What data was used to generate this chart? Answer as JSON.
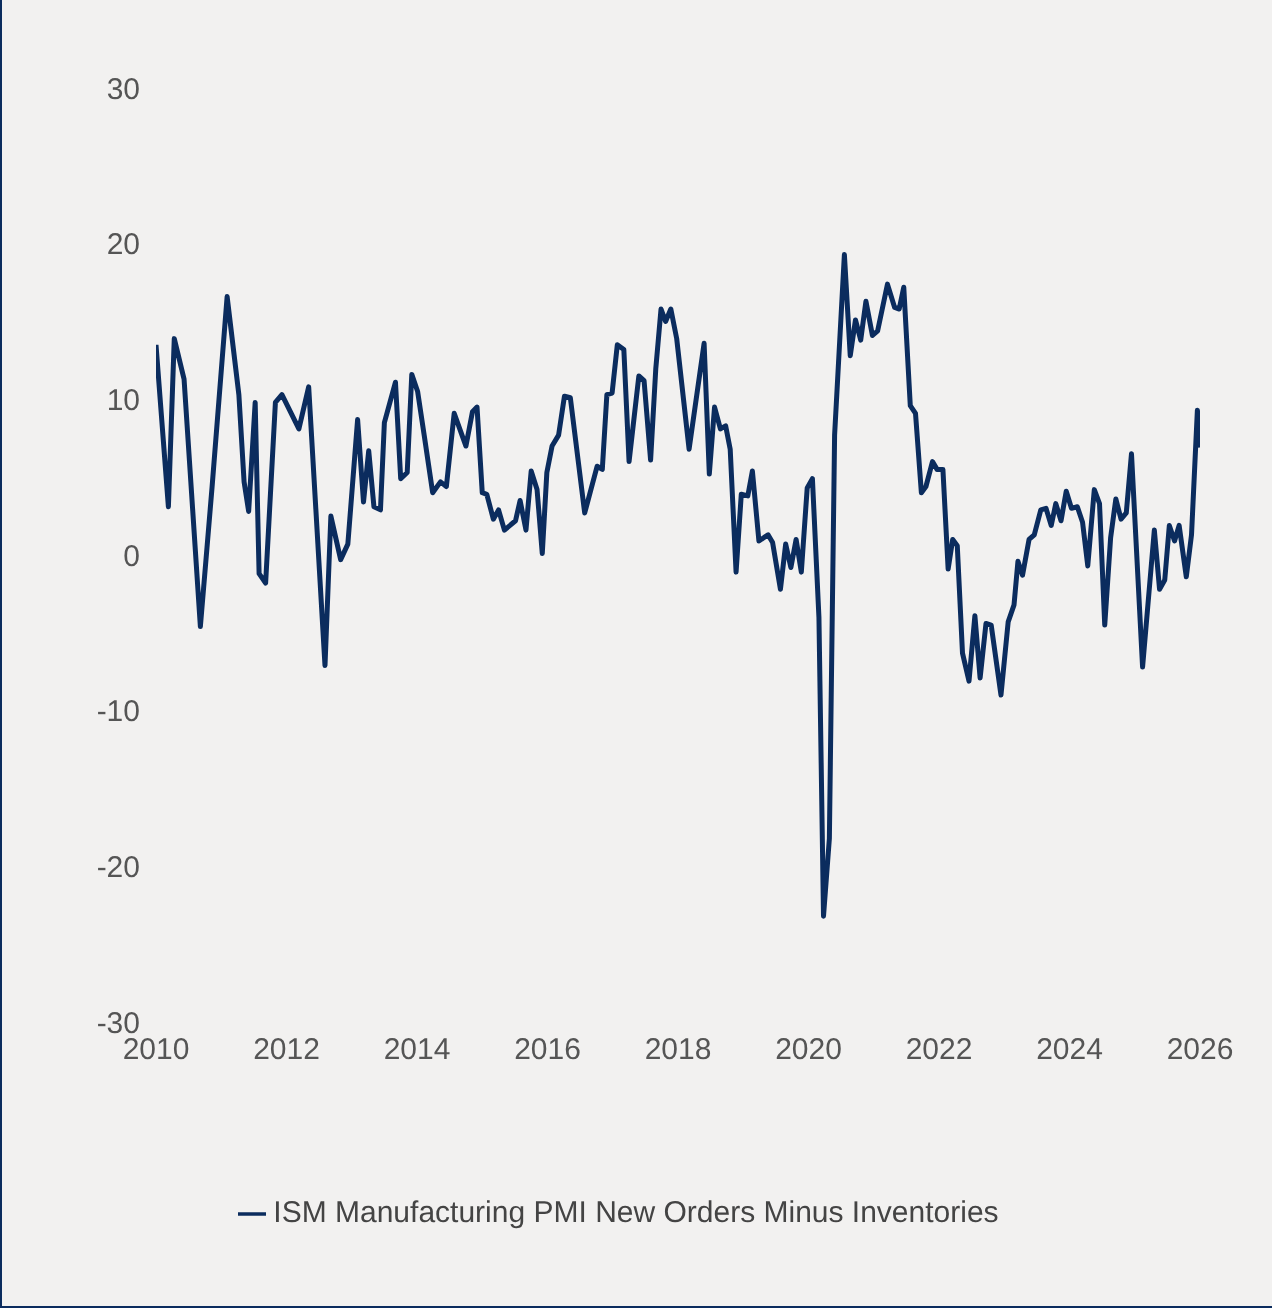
{
  "chart_data": {
    "type": "line",
    "xlim": [
      2010,
      2026
    ],
    "xticks": [
      2010,
      2012,
      2014,
      2016,
      2018,
      2020,
      2022,
      2024,
      2026
    ],
    "ylim": [
      -30,
      30
    ],
    "yticks": [
      -30,
      -20,
      -10,
      0,
      10,
      20,
      30
    ],
    "grid": false,
    "legend": "bottom",
    "marker": "none",
    "line_style": "solid",
    "series": [
      {
        "name": "ISM Manufacturing PMI New Orders Minus Inventories",
        "color": "#0b2c5e",
        "x": [
          2010.0,
          2010.19,
          2010.28,
          2010.43,
          2010.68,
          2010.86,
          2011.09,
          2011.27,
          2011.35,
          2011.42,
          2011.52,
          2011.58,
          2011.68,
          2011.83,
          2011.93,
          2012.19,
          2012.34,
          2012.59,
          2012.68,
          2012.83,
          2012.94,
          2013.09,
          2013.18,
          2013.26,
          2013.34,
          2013.44,
          2013.5,
          2013.67,
          2013.75,
          2013.85,
          2013.92,
          2014.01,
          2014.11,
          2014.24,
          2014.36,
          2014.45,
          2014.57,
          2014.75,
          2014.85,
          2014.92,
          2015.0,
          2015.07,
          2015.17,
          2015.25,
          2015.34,
          2015.51,
          2015.58,
          2015.67,
          2015.75,
          2015.84,
          2015.92,
          2015.99,
          2016.07,
          2016.17,
          2016.26,
          2016.35,
          2016.57,
          2016.76,
          2016.84,
          2016.91,
          2016.99,
          2017.07,
          2017.17,
          2017.25,
          2017.4,
          2017.48,
          2017.58,
          2017.66,
          2017.74,
          2017.81,
          2017.89,
          2017.98,
          2018.17,
          2018.4,
          2018.48,
          2018.56,
          2018.65,
          2018.73,
          2018.8,
          2018.89,
          2018.97,
          2019.07,
          2019.14,
          2019.24,
          2019.38,
          2019.45,
          2019.57,
          2019.65,
          2019.73,
          2019.81,
          2019.89,
          2019.98,
          2020.06,
          2020.16,
          2020.23,
          2020.32,
          2020.4,
          2020.55,
          2020.64,
          2020.72,
          2020.8,
          2020.88,
          2020.98,
          2021.06,
          2021.21,
          2021.32,
          2021.39,
          2021.46,
          2021.56,
          2021.64,
          2021.73,
          2021.8,
          2021.9,
          2021.97,
          2022.06,
          2022.14,
          2022.21,
          2022.28,
          2022.36,
          2022.46,
          2022.55,
          2022.63,
          2022.72,
          2022.8,
          2022.95,
          2023.06,
          2023.15,
          2023.21,
          2023.28,
          2023.38,
          2023.46,
          2023.56,
          2023.64,
          2023.72,
          2023.79,
          2023.87,
          2023.95,
          2024.03,
          2024.12,
          2024.2,
          2024.28,
          2024.38,
          2024.46,
          2024.54,
          2024.63,
          2024.71,
          2024.79,
          2024.87,
          2024.95,
          2025.12,
          2025.3,
          2025.38,
          2025.46,
          2025.53,
          2025.61,
          2025.68,
          2025.79,
          2025.87,
          2025.96,
          2026.0
        ],
        "values": [
          13.5,
          3.1,
          13.9,
          11.3,
          -4.6,
          4.4,
          16.6,
          10.3,
          4.7,
          2.8,
          9.8,
          -1.2,
          -1.8,
          9.8,
          10.3,
          8.1,
          10.8,
          -7.1,
          2.5,
          -0.3,
          0.7,
          8.7,
          3.4,
          6.7,
          3.1,
          2.9,
          8.5,
          11.1,
          4.9,
          5.3,
          11.6,
          10.5,
          7.7,
          4.0,
          4.7,
          4.4,
          9.1,
          7.0,
          9.2,
          9.5,
          4.0,
          3.9,
          2.3,
          2.9,
          1.6,
          2.2,
          3.5,
          1.6,
          5.4,
          4.2,
          0.1,
          5.3,
          7.0,
          7.7,
          10.2,
          10.1,
          2.7,
          5.7,
          5.5,
          10.3,
          10.4,
          13.5,
          13.2,
          6.0,
          11.5,
          11.2,
          6.1,
          12.0,
          15.8,
          15.0,
          15.8,
          13.9,
          6.8,
          13.6,
          5.2,
          9.5,
          8.1,
          8.3,
          6.8,
          -1.1,
          3.9,
          3.8,
          5.4,
          0.9,
          1.3,
          0.8,
          -2.2,
          0.7,
          -0.8,
          1.0,
          -1.1,
          4.3,
          4.9,
          -4.0,
          -23.2,
          -18.2,
          7.7,
          19.3,
          12.8,
          15.1,
          13.8,
          16.3,
          14.1,
          14.4,
          17.4,
          15.9,
          15.8,
          17.2,
          9.6,
          9.1,
          4.0,
          4.4,
          6.0,
          5.5,
          5.5,
          -0.9,
          1.0,
          0.6,
          -6.3,
          -8.1,
          -3.9,
          -7.9,
          -4.4,
          -4.5,
          -9.0,
          -4.3,
          -3.2,
          -0.4,
          -1.3,
          1.0,
          1.3,
          2.9,
          3.0,
          1.9,
          3.3,
          2.2,
          4.1,
          3.0,
          3.1,
          2.1,
          -0.7,
          4.2,
          3.3,
          -4.5,
          1.1,
          3.6,
          2.3,
          2.7,
          6.5,
          -7.2,
          1.6,
          -2.2,
          -1.6,
          1.9,
          0.9,
          1.9,
          -1.4,
          1.3,
          9.3,
          6.9
        ]
      }
    ]
  }
}
